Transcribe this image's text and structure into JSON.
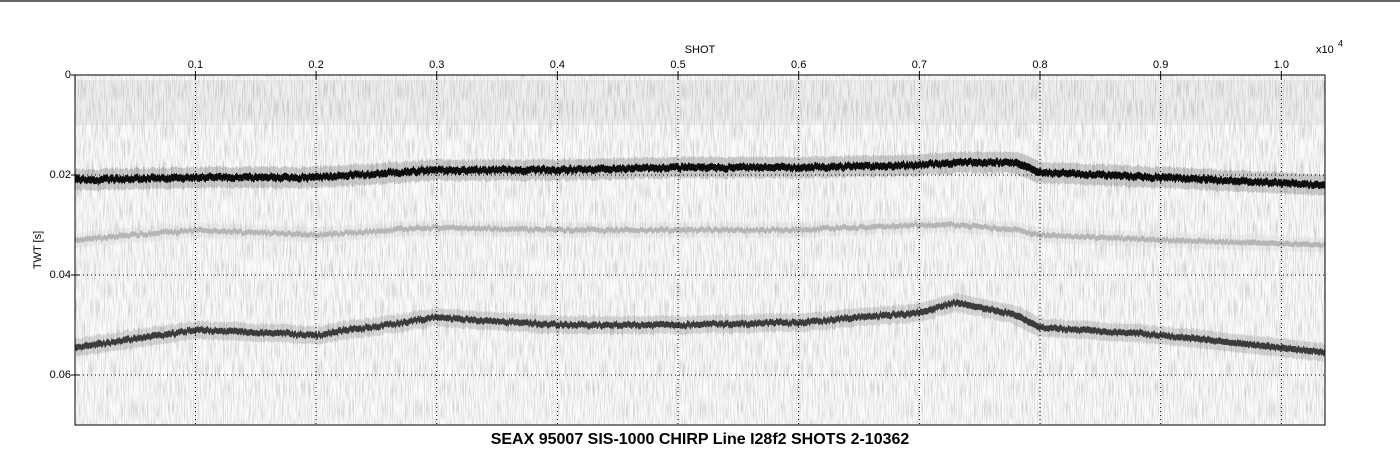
{
  "chart_data": {
    "type": "seismic",
    "title": "SEAX 95007 SIS-1000 CHIRP Line I28f2 SHOTS 2-10362",
    "xlabel": "SHOT",
    "xlabel_multiplier": "x10",
    "xlabel_multiplier_exponent": "4",
    "ylabel": "TWT [s]",
    "x": [
      0.0002,
      0.1,
      0.2,
      0.3,
      0.4,
      0.5,
      0.6,
      0.7,
      0.73,
      0.78,
      0.8,
      0.9,
      1.0362
    ],
    "series": [
      {
        "color": "#111111",
        "values": [
          0.021,
          0.0205,
          0.0205,
          0.019,
          0.019,
          0.0185,
          0.0185,
          0.018,
          0.0175,
          0.0175,
          0.0195,
          0.0205,
          0.022
        ]
      },
      {
        "color": "#b5b5b5",
        "values": [
          0.033,
          0.031,
          0.032,
          0.0305,
          0.031,
          0.031,
          0.031,
          0.03,
          0.03,
          0.031,
          0.032,
          0.033,
          0.034
        ]
      },
      {
        "color": "#3a3a3a",
        "values": [
          0.0545,
          0.051,
          0.052,
          0.0485,
          0.05,
          0.05,
          0.0495,
          0.0475,
          0.0455,
          0.048,
          0.0505,
          0.052,
          0.0555
        ]
      }
    ],
    "xlim": [
      0.0002,
      1.0362
    ],
    "xticks": [
      0.1,
      0.2,
      0.3,
      0.4,
      0.5,
      0.6,
      0.7,
      0.8,
      0.9,
      {
        "value": 1,
        "label": "1.0"
      }
    ],
    "ylim": [
      0,
      0.07
    ],
    "yticks": [
      0,
      0.02,
      0.04,
      0.06
    ],
    "y_inverted": true,
    "grid": true
  }
}
